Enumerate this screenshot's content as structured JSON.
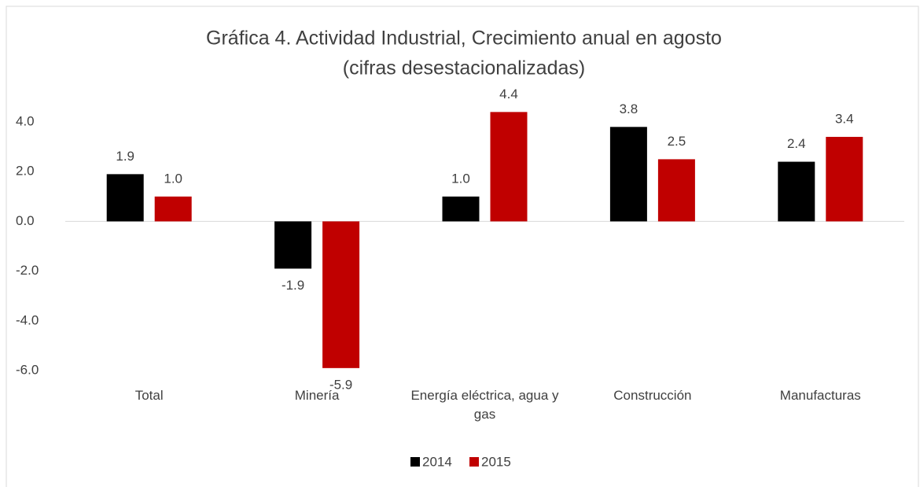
{
  "chart_data": {
    "type": "bar",
    "title": "Gráfica 4. Actividad Industrial, Crecimiento anual en agosto",
    "subtitle": "(cifras desestacionalizadas)",
    "categories": [
      "Total",
      "Minería",
      "Energía eléctrica, agua y gas",
      "Construcción",
      "Manufacturas"
    ],
    "series": [
      {
        "name": "2014",
        "color": "#000000",
        "values": [
          1.9,
          -1.9,
          1.0,
          3.8,
          2.4
        ],
        "value_labels": [
          "1.9",
          "-1.9",
          "1.0",
          "3.8",
          "2.4"
        ]
      },
      {
        "name": "2015",
        "color": "#c00000",
        "values": [
          1.0,
          -5.9,
          4.4,
          2.5,
          3.4
        ],
        "value_labels": [
          "1.0",
          "-5.9",
          "4.4",
          "2.5",
          "3.4"
        ]
      }
    ],
    "ylim": [
      -6,
      4
    ],
    "yticks": [
      {
        "value": -6,
        "label": "-6.0"
      },
      {
        "value": -4,
        "label": "-4.0"
      },
      {
        "value": -2,
        "label": "-2.0"
      },
      {
        "value": 0,
        "label": "0.0"
      },
      {
        "value": 2,
        "label": "2.0"
      },
      {
        "value": 4,
        "label": "4.0"
      }
    ],
    "grid": false,
    "legend": "bottom"
  }
}
